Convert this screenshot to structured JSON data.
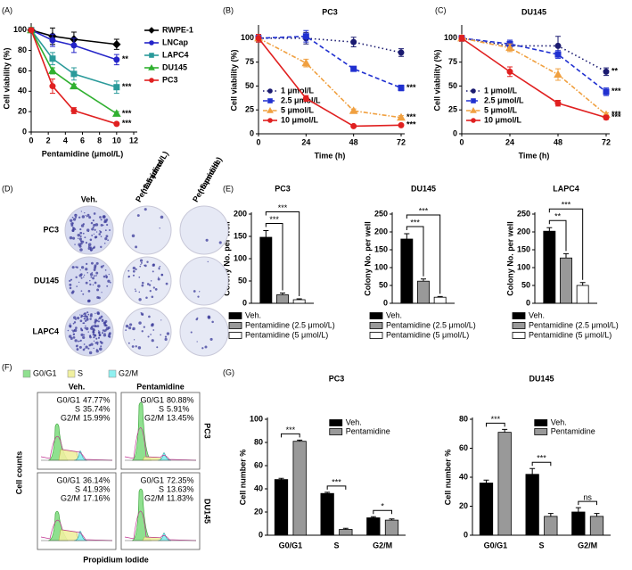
{
  "chart_data": [
    {
      "type": "line",
      "panel": "(A)",
      "xlabel": "Pentamidine  (μmol/L)",
      "ylabel": "Cell viability (%)",
      "x": [
        0,
        2.5,
        5,
        10
      ],
      "xlim": [
        0,
        12
      ],
      "xticks": [
        0,
        2,
        4,
        6,
        8,
        10,
        12
      ],
      "ylim": [
        0,
        105
      ],
      "yticks": [
        0,
        20,
        40,
        60,
        80,
        100
      ],
      "legend": "right",
      "series": [
        {
          "name": "RWPE-1",
          "color": "#000000",
          "marker": "diamond",
          "dash": "solid",
          "values": [
            100,
            94,
            91,
            86
          ],
          "errors": [
            2,
            8,
            7,
            5
          ]
        },
        {
          "name": "LNCap",
          "color": "#2424c8",
          "marker": "circle",
          "dash": "solid",
          "values": [
            100,
            90,
            85,
            71
          ],
          "errors": [
            2,
            6,
            7,
            5
          ],
          "annotation": "**"
        },
        {
          "name": "LAPC4",
          "color": "#2a9a9a",
          "marker": "square",
          "dash": "solid",
          "values": [
            100,
            72,
            57,
            44
          ],
          "errors": [
            2,
            6,
            6,
            6
          ],
          "annotation": "***"
        },
        {
          "name": "DU145",
          "color": "#30b030",
          "marker": "triangle",
          "dash": "solid",
          "values": [
            100,
            60,
            45,
            18
          ],
          "errors": [
            2,
            3,
            2,
            2
          ],
          "annotation": "***"
        },
        {
          "name": "PC3",
          "color": "#e02020",
          "marker": "circle",
          "dash": "solid",
          "values": [
            100,
            45,
            21,
            8
          ],
          "errors": [
            2,
            7,
            3,
            1
          ],
          "annotation": "***"
        }
      ]
    },
    {
      "type": "line",
      "panel": "(B)",
      "title": "PC3",
      "xlabel": "Time (h)",
      "ylabel": "Cell viability (%)",
      "x": [
        0,
        24,
        48,
        72
      ],
      "xlim": [
        0,
        72
      ],
      "xticks": [
        0,
        24,
        48,
        72
      ],
      "ylim": [
        0,
        112
      ],
      "yticks": [
        0,
        25,
        50,
        75,
        100
      ],
      "legend": "lower left",
      "series": [
        {
          "name": "1 μmol/L",
          "color": "#1a1a70",
          "marker": "circle",
          "dash": "dot",
          "values": [
            100,
            100,
            96,
            85
          ],
          "errors": [
            4,
            6,
            5,
            4
          ]
        },
        {
          "name": "2.5 μmol/L",
          "color": "#2030d0",
          "marker": "square",
          "dash": "dash",
          "values": [
            100,
            102,
            68,
            48
          ],
          "errors": [
            4,
            6,
            2,
            3
          ],
          "annotation": "***"
        },
        {
          "name": "5 μmol/L",
          "color": "#f0a040",
          "marker": "triangle",
          "dash": "dashdot",
          "values": [
            100,
            74,
            24,
            17
          ],
          "errors": [
            4,
            4,
            2,
            2
          ],
          "annotation": "***"
        },
        {
          "name": "10 μmol/L",
          "color": "#e02020",
          "marker": "circle",
          "dash": "solid",
          "values": [
            100,
            37,
            8,
            9
          ],
          "errors": [
            4,
            3,
            1,
            1
          ],
          "annotation": "***"
        }
      ]
    },
    {
      "type": "line",
      "panel": "(C)",
      "title": "DU145",
      "xlabel": "Time (h)",
      "ylabel": "Cell viability (%)",
      "x": [
        0,
        24,
        48,
        72
      ],
      "xlim": [
        0,
        72
      ],
      "xticks": [
        0,
        24,
        48,
        72
      ],
      "ylim": [
        0,
        112
      ],
      "yticks": [
        0,
        25,
        50,
        75,
        100
      ],
      "legend": "lower left",
      "series": [
        {
          "name": "1 μmol/L",
          "color": "#1a1a70",
          "marker": "circle",
          "dash": "dot",
          "values": [
            100,
            92,
            92,
            65
          ],
          "errors": [
            3,
            4,
            10,
            4
          ],
          "annotation": "**"
        },
        {
          "name": "2.5 μmol/L",
          "color": "#2030d0",
          "marker": "square",
          "dash": "dash",
          "values": [
            100,
            94,
            83,
            44
          ],
          "errors": [
            3,
            4,
            4,
            4
          ],
          "annotation": "***"
        },
        {
          "name": "5 μmol/L",
          "color": "#f0a040",
          "marker": "triangle",
          "dash": "dashdot",
          "values": [
            100,
            90,
            62,
            20
          ],
          "errors": [
            3,
            4,
            6,
            2
          ],
          "annotation": "***"
        },
        {
          "name": "10 μmol/L",
          "color": "#e02020",
          "marker": "circle",
          "dash": "solid",
          "values": [
            100,
            65,
            32,
            17
          ],
          "errors": [
            3,
            5,
            3,
            2
          ],
          "annotation": "***"
        }
      ]
    },
    {
      "type": "bar",
      "panel": "(E)",
      "title": "PC3",
      "ylabel": "Colony No. per well",
      "categories": [
        null
      ],
      "ylim": [
        0,
        200
      ],
      "yticks": [
        0,
        50,
        100,
        150,
        200
      ],
      "legend": "below",
      "series": [
        {
          "name": "Veh.",
          "color": "#000000",
          "values": [
            148
          ],
          "errors": [
            15
          ]
        },
        {
          "name": "Pentamidine (2.5 μmol/L)",
          "color": "#999999",
          "values": [
            19
          ],
          "errors": [
            4
          ]
        },
        {
          "name": "Pentamidine (5 μmol/L)",
          "color": "#ffffff",
          "values": [
            8
          ],
          "errors": [
            2
          ]
        }
      ],
      "annotations": [
        "***",
        "***"
      ]
    },
    {
      "type": "bar",
      "title": "DU145",
      "ylabel": "Colony No. per well",
      "categories": [
        null
      ],
      "ylim": [
        0,
        250
      ],
      "yticks": [
        0,
        50,
        100,
        150,
        200,
        250
      ],
      "legend": "below",
      "series": [
        {
          "name": "Veh.",
          "color": "#000000",
          "values": [
            180
          ],
          "errors": [
            15
          ]
        },
        {
          "name": "Pentamidine (2.5 μmol/L)",
          "color": "#999999",
          "values": [
            62
          ],
          "errors": [
            6
          ]
        },
        {
          "name": "Pentamidine (5 μmol/L)",
          "color": "#ffffff",
          "values": [
            17
          ],
          "errors": [
            2
          ]
        }
      ],
      "annotations": [
        "***",
        "***"
      ]
    },
    {
      "type": "bar",
      "title": "LAPC4",
      "ylabel": "Colony No. per well",
      "categories": [
        null
      ],
      "ylim": [
        0,
        250
      ],
      "yticks": [
        0,
        50,
        100,
        150,
        200,
        250
      ],
      "legend": "below",
      "series": [
        {
          "name": "Veh.",
          "color": "#000000",
          "values": [
            202
          ],
          "errors": [
            10
          ]
        },
        {
          "name": "Pentamidine (2.5 μmol/L)",
          "color": "#999999",
          "values": [
            127
          ],
          "errors": [
            12
          ]
        },
        {
          "name": "Pentamidine (5  μmol/L)",
          "color": "#ffffff",
          "values": [
            50
          ],
          "errors": [
            8
          ]
        }
      ],
      "annotations": [
        "**",
        "***"
      ]
    },
    {
      "type": "bar",
      "panel": "(G)",
      "title": "PC3",
      "ylabel": "Cell number %",
      "categories": [
        "G0/G1",
        "S",
        "G2/M"
      ],
      "ylim": [
        0,
        100
      ],
      "yticks": [
        0,
        20,
        40,
        60,
        80,
        100
      ],
      "legend": "upper right",
      "series": [
        {
          "name": "Veh.",
          "color": "#000000",
          "values": [
            48,
            36,
            15
          ],
          "errors": [
            1,
            1,
            1
          ]
        },
        {
          "name": "Pentamidine",
          "color": "#999999",
          "values": [
            81,
            5,
            13
          ],
          "errors": [
            1,
            1,
            1
          ]
        }
      ],
      "annotations": [
        "***",
        "***",
        "*"
      ]
    },
    {
      "type": "bar",
      "title": "DU145",
      "ylabel": "Cell number %",
      "categories": [
        "G0/G1",
        "S",
        "G2/M"
      ],
      "ylim": [
        0,
        80
      ],
      "yticks": [
        0,
        20,
        40,
        60,
        80
      ],
      "legend": "upper right",
      "series": [
        {
          "name": "Veh.",
          "color": "#000000",
          "values": [
            36,
            42,
            16
          ],
          "errors": [
            2,
            4,
            3
          ]
        },
        {
          "name": "Pentamidine",
          "color": "#999999",
          "values": [
            71,
            13,
            13
          ],
          "errors": [
            2,
            2,
            2
          ]
        }
      ],
      "annotations": [
        "***",
        "***",
        "ns"
      ]
    }
  ],
  "plates": {
    "panel": "(D)",
    "columns": [
      [
        "Veh."
      ],
      [
        "Pentamidine",
        "( 2.5 μmol/L)"
      ],
      [
        "Pentamidine",
        "( 5 μmol/L)"
      ]
    ],
    "rows": [
      "PC3",
      "DU145",
      "LAPC4"
    ]
  },
  "cycle": {
    "panel": "(F)",
    "legend": [
      "G0/G1",
      "S",
      "G2/M"
    ],
    "legend_colors": [
      "#8fe08f",
      "#f0f0a0",
      "#8ff0f0"
    ],
    "columns": [
      "Veh.",
      "Pentamidine"
    ],
    "rows": [
      "PC3",
      "DU145"
    ],
    "ylabel": "Cell counts",
    "xlabel": "Propidium Iodide",
    "stats": [
      [
        [
          [
            "G0/G1",
            "47.77%"
          ],
          [
            "S",
            "35.74%"
          ],
          [
            "G2/M",
            "15.99%"
          ]
        ],
        [
          [
            "G0/G1",
            "80.88%"
          ],
          [
            "S",
            "5.91%"
          ],
          [
            "G2/M",
            "13.45%"
          ]
        ]
      ],
      [
        [
          [
            "G0/G1",
            "36.14%"
          ],
          [
            "S",
            "41.93%"
          ],
          [
            "G2/M",
            "17.16%"
          ]
        ],
        [
          [
            "G0/G1",
            "72.35%"
          ],
          [
            "S",
            "13.63%"
          ],
          [
            "G2/M",
            "11.83%"
          ]
        ]
      ]
    ]
  }
}
